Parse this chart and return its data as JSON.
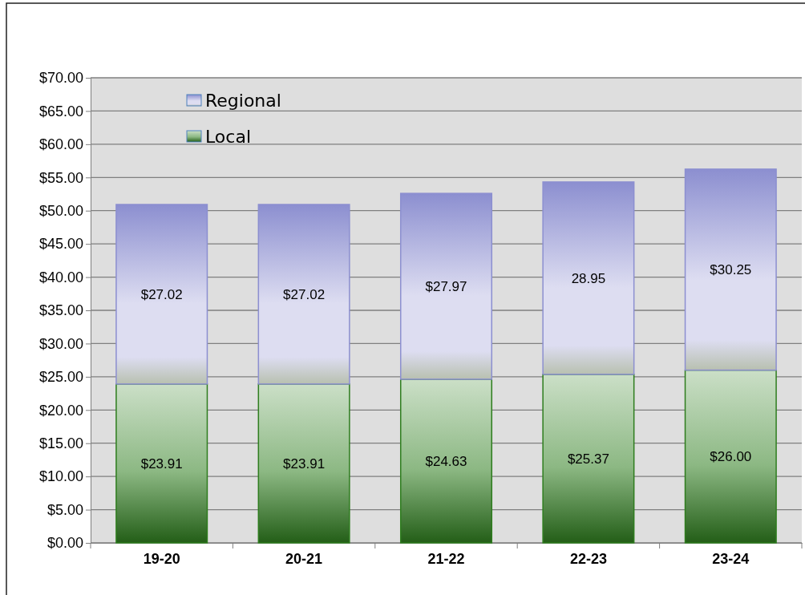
{
  "chart_data": {
    "type": "bar",
    "stacked": true,
    "categories": [
      "19-20",
      "20-21",
      "21-22",
      "22-23",
      "23-24"
    ],
    "series": [
      {
        "name": "Local",
        "color": "#2e7d1e",
        "values": [
          23.91,
          23.91,
          24.63,
          25.37,
          26.0
        ],
        "value_labels": [
          "$23.91",
          "$23.91",
          "$24.63",
          "$25.37",
          "$26.00"
        ]
      },
      {
        "name": "Regional",
        "color": "#8c8fd0",
        "values": [
          27.02,
          27.02,
          27.97,
          28.95,
          30.25
        ],
        "value_labels": [
          "$27.02",
          "$27.02",
          "$27.97",
          "28.95",
          "$30.25"
        ]
      }
    ],
    "ylim": [
      0,
      70
    ],
    "yticks": [
      {
        "value": 0,
        "label": "$0.00"
      },
      {
        "value": 5,
        "label": "$5.00"
      },
      {
        "value": 10,
        "label": "$10.00"
      },
      {
        "value": 15,
        "label": "$15.00"
      },
      {
        "value": 20,
        "label": "$20.00"
      },
      {
        "value": 25,
        "label": "$25.00"
      },
      {
        "value": 30,
        "label": "$30.00"
      },
      {
        "value": 35,
        "label": "$35.00"
      },
      {
        "value": 40,
        "label": "$40.00"
      },
      {
        "value": 45,
        "label": "$45.00"
      },
      {
        "value": 50,
        "label": "$50.00"
      },
      {
        "value": 55,
        "label": "$55.00"
      },
      {
        "value": 60,
        "label": "$60.00"
      },
      {
        "value": 65,
        "label": "$65.00"
      },
      {
        "value": 70,
        "label": "$70.00"
      }
    ],
    "grid": "y",
    "legend": "top left"
  }
}
